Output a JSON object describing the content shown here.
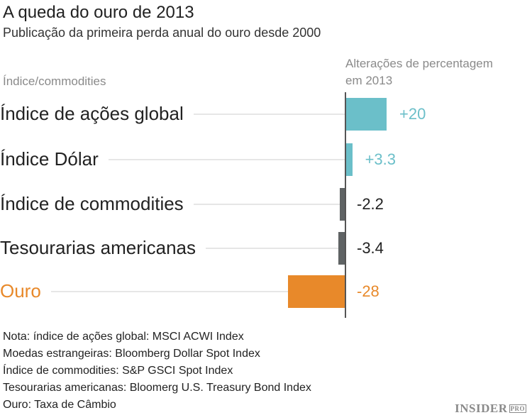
{
  "chart_data": {
    "type": "bar",
    "orientation": "horizontal",
    "title": "A queda do ouro de 2013",
    "subtitle": "Publicação da primeira perda anual do ouro desde 2000",
    "category_header": "Índice/commodities",
    "value_header": "Alterações de percentagem em 2013",
    "value_header_lines": [
      "Alterações de percentagem",
      "em 2013"
    ],
    "categories": [
      "Índice de ações global",
      "Índice Dólar",
      "Índice de commodities",
      "Tesourarias americanas",
      "Ouro"
    ],
    "values": [
      20,
      3.3,
      -2.2,
      -3.4,
      -28
    ],
    "value_labels": [
      "+20",
      "+3.3",
      "-2.2",
      "-3.4",
      "-28"
    ],
    "colors": [
      "#6bbfc9",
      "#6bbfc9",
      "#5f6364",
      "#5f6364",
      "#e8892a"
    ],
    "label_colors": [
      "#222222",
      "#222222",
      "#222222",
      "#222222",
      "#e8892a"
    ],
    "value_label_colors": [
      "#6bbfc9",
      "#6bbfc9",
      "#222222",
      "#222222",
      "#e8892a"
    ]
  },
  "notes": [
    "Nota: índice de ações global: MSCI ACWI Index",
    "Moedas estrangeiras: Bloomberg Dollar Spot Index",
    "Índice de commodities: S&P GSCI Spot Index",
    "Tesourarias americanas: Bloomerg U.S. Treasury Bond Index",
    "Ouro: Taxa de Câmbio"
  ],
  "logo": {
    "text": "INSIDER",
    "suffix": "PRO"
  }
}
